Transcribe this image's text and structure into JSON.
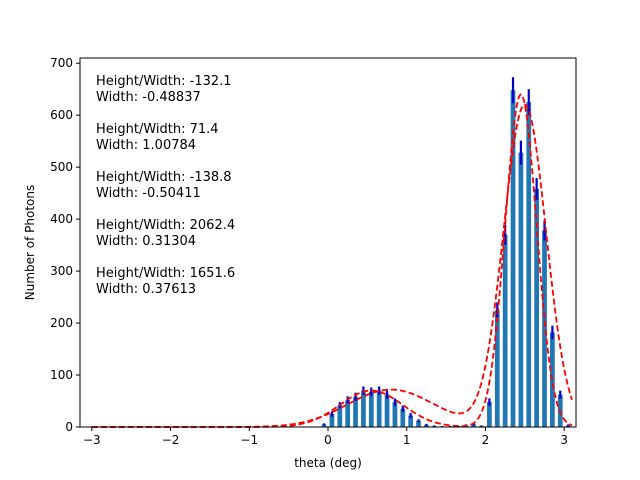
{
  "chart_data": {
    "type": "bar",
    "title": "",
    "xlabel": "theta (deg)",
    "ylabel": "Number of Photons",
    "xlim": [
      -3.15,
      3.15
    ],
    "ylim": [
      0,
      710
    ],
    "xticks": [
      -3,
      -2,
      -1,
      0,
      1,
      2,
      3
    ],
    "yticks": [
      0,
      100,
      200,
      300,
      400,
      500,
      600,
      700
    ],
    "grid": false,
    "bar_color": "#1f77b4",
    "errorbar_color": "#0000cc",
    "fit_color": "#ff0000",
    "bars": {
      "x": [
        -0.05,
        0.05,
        0.15,
        0.25,
        0.35,
        0.45,
        0.55,
        0.65,
        0.75,
        0.85,
        0.95,
        1.05,
        1.15,
        1.25,
        1.35,
        1.45,
        1.55,
        1.65,
        1.75,
        1.85,
        1.95,
        2.05,
        2.15,
        2.25,
        2.35,
        2.45,
        2.55,
        2.65,
        2.75,
        2.85,
        2.95,
        3.05
      ],
      "values": [
        5,
        25,
        42,
        52,
        58,
        70,
        68,
        70,
        62,
        48,
        35,
        22,
        12,
        4,
        2,
        1,
        1,
        2,
        3,
        5,
        2,
        48,
        225,
        370,
        648,
        528,
        625,
        458,
        378,
        182,
        62,
        3
      ],
      "errors": [
        2,
        5,
        6,
        7,
        8,
        8,
        8,
        8,
        8,
        7,
        6,
        5,
        3,
        2,
        1,
        1,
        1,
        1,
        2,
        2,
        1,
        7,
        15,
        19,
        25,
        23,
        25,
        21,
        19,
        13,
        8,
        2
      ]
    },
    "annotations": [
      {
        "line1": "Height/Width: -132.1",
        "line2": "Width: -0.48837"
      },
      {
        "line1": "Height/Width: 71.4",
        "line2": "Width: 1.00784"
      },
      {
        "line1": "Height/Width: -138.8",
        "line2": "Width: -0.50411"
      },
      {
        "line1": "Height/Width: 2062.4",
        "line2": "Width: 0.31304"
      },
      {
        "line1": "Height/Width: 1651.6",
        "line2": "Width: 0.37613"
      }
    ],
    "fit_curves": [
      {
        "peaks": [
          {
            "A": 70,
            "mu": 0.55,
            "sigma": 0.4
          },
          {
            "A": 640,
            "mu": 2.45,
            "sigma": 0.2
          }
        ]
      },
      {
        "peaks": [
          {
            "A": 72,
            "mu": 0.8,
            "sigma": 0.55
          },
          {
            "A": 620,
            "mu": 2.5,
            "sigma": 0.27
          }
        ]
      }
    ]
  }
}
